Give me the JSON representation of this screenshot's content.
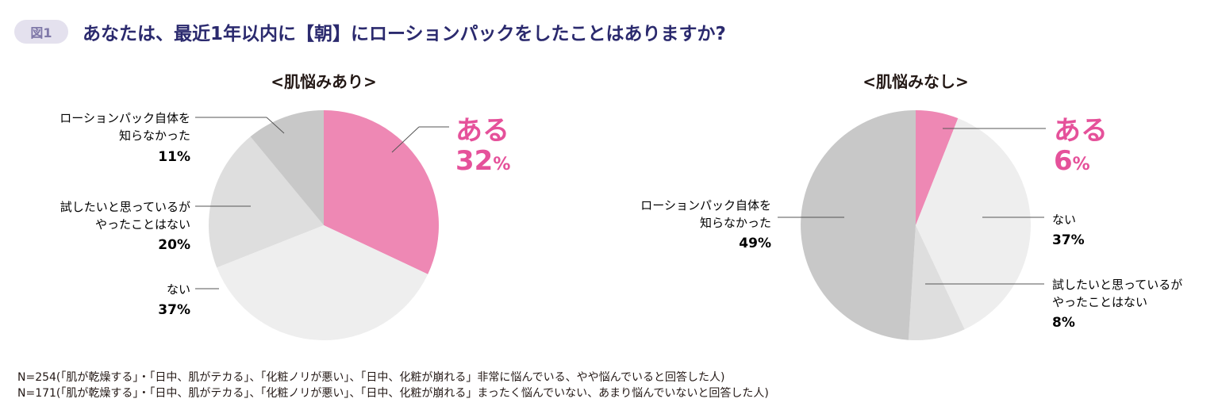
{
  "header": {
    "badge": "図1",
    "title": "あなたは、最近1年以内に【朝】にローションパックをしたことはありますか?"
  },
  "colors": {
    "pink": "#ee88b4",
    "dark_gray": "#c8c8c8",
    "mid_gray": "#dedede",
    "light_gray": "#eeeeee",
    "title_navy": "#2b2a6e",
    "line": "#555555"
  },
  "chart_data": [
    {
      "type": "pie",
      "title": "<肌悩みあり>",
      "slices": [
        {
          "label": "ある",
          "value": 32,
          "pct_text": "32",
          "unit": "%"
        },
        {
          "label": "ない",
          "value": 37,
          "pct_text": "37%"
        },
        {
          "label_line1": "試したいと思っているが",
          "label_line2": "やったことはない",
          "value": 20,
          "pct_text": "20%"
        },
        {
          "label_line1": "ローションパック自体を",
          "label_line2": "知らなかった",
          "value": 11,
          "pct_text": "11%"
        }
      ]
    },
    {
      "type": "pie",
      "title": "<肌悩みなし>",
      "slices": [
        {
          "label": "ある",
          "value": 6,
          "pct_text": "6",
          "unit": "%"
        },
        {
          "label": "ない",
          "value": 37,
          "pct_text": "37%"
        },
        {
          "label_line1": "試したいと思っているが",
          "label_line2": "やったことはない",
          "value": 8,
          "pct_text": "8%"
        },
        {
          "label_line1": "ローションパック自体を",
          "label_line2": "知らなかった",
          "value": 49,
          "pct_text": "49%"
        }
      ]
    }
  ],
  "notes": [
    "N=254(「肌が乾燥する」・「日中、肌がテカる」、「化粧ノリが悪い」、「日中、化粧が崩れる」非常に悩んでいる、やや悩んでいると回答した人)",
    "N=171(「肌が乾燥する」・「日中、肌がテカる」、「化粧ノリが悪い」、「日中、化粧が崩れる」まったく悩んでいない、あまり悩んでいないと回答した人)"
  ]
}
